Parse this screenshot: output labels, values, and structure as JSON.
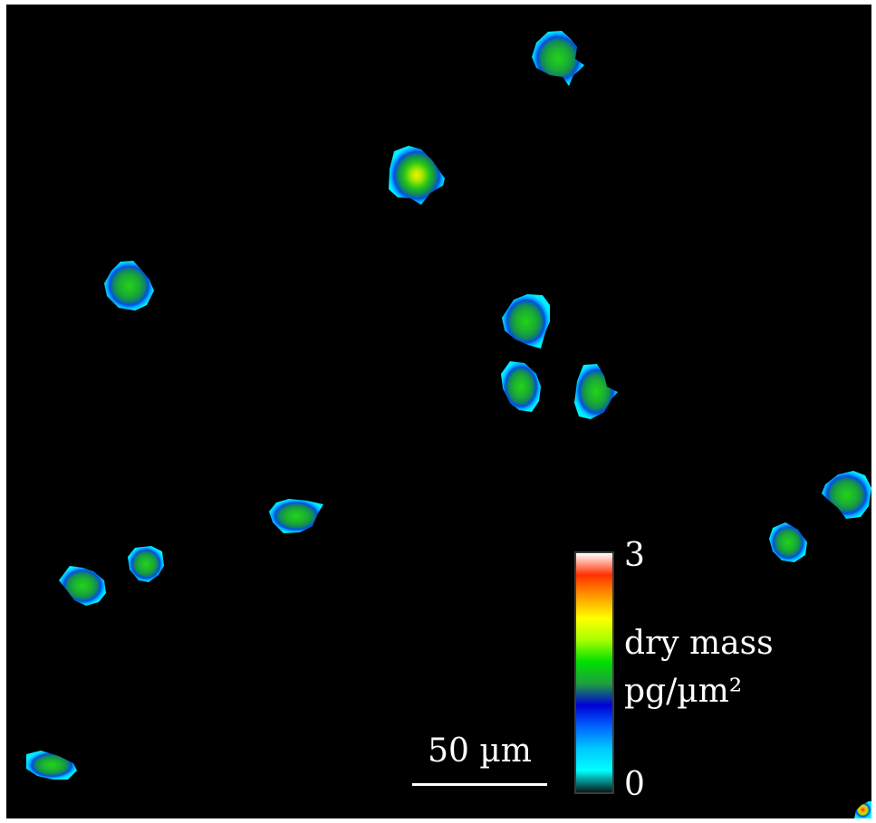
{
  "scale_bar": {
    "label": "50 µm"
  },
  "colorbar": {
    "max_label": "3",
    "min_label": "0",
    "quantity_label": "dry mass",
    "units_label": "pg/µm²",
    "colormap": [
      "#0a1a1a",
      "#00ffff",
      "#00c8ff",
      "#0066ff",
      "#0000d8",
      "#1f9f3f",
      "#00e000",
      "#a8ff00",
      "#ffff00",
      "#ff9c00",
      "#ff3000",
      "#ffffff"
    ]
  },
  "colors": {
    "background": "#000000",
    "cell_edge": "#00e5ff",
    "cell_mid": "#005ee8",
    "cell_body": "#129a4a",
    "cell_core": "#22d418",
    "cell_peak": "#d2e800"
  }
}
